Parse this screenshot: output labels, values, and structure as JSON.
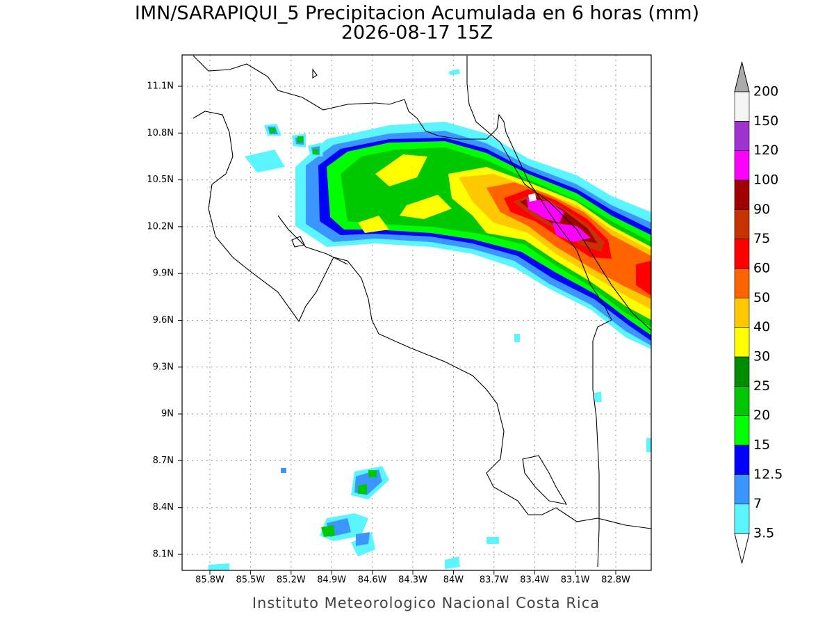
{
  "header": {
    "title": "IMN/SARAPIQUI_5 Precipitacion Acumulada en 6 horas (mm)",
    "subtitle": "2026-08-17 15Z"
  },
  "map": {
    "lon_ticks": [
      "85.8W",
      "85.5W",
      "85.2W",
      "84.9W",
      "84.6W",
      "84.3W",
      "84W",
      "83.7W",
      "83.4W",
      "83.1W",
      "82.8W"
    ],
    "lat_ticks": [
      "11.1N",
      "10.8N",
      "10.5N",
      "10.2N",
      "9.9N",
      "9.6N",
      "9.3N",
      "9N",
      "8.7N",
      "8.4N",
      "8.1N"
    ]
  },
  "colorbar": {
    "levels": [
      3.5,
      7,
      12.5,
      15,
      20,
      25,
      30,
      40,
      50,
      60,
      75,
      90,
      100,
      120,
      150,
      200
    ],
    "colors": [
      "#ffffff",
      "#5af5ff",
      "#3c96ff",
      "#0000ff",
      "#00ff00",
      "#00c800",
      "#008c00",
      "#ffff00",
      "#ffc800",
      "#ff6400",
      "#ff0000",
      "#c83200",
      "#a00000",
      "#ff00ff",
      "#a032d2",
      "#f5f5f5",
      "#aaaaaa"
    ]
  },
  "footer": {
    "credit": "Instituto Meteorologico Nacional Costa Rica"
  }
}
